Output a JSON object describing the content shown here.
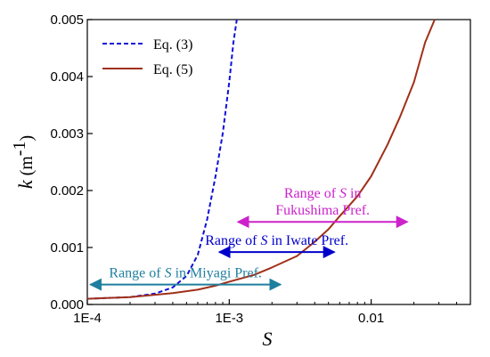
{
  "chart_data": {
    "type": "line",
    "x_scale": "log",
    "xlabel": "S",
    "ylabel_main": "k",
    "ylabel_unit": " (m",
    "ylabel_exp": "-1",
    "ylabel_close": ")",
    "xlim": [
      0.0001,
      0.05
    ],
    "ylim": [
      0,
      0.005
    ],
    "x_ticks": [
      {
        "value": 0.0001,
        "label": "1E-4"
      },
      {
        "value": 0.001,
        "label": "1E-3"
      },
      {
        "value": 0.01,
        "label": "0.01"
      }
    ],
    "y_ticks": [
      {
        "value": 0.0,
        "label": "0.000"
      },
      {
        "value": 0.001,
        "label": "0.001"
      },
      {
        "value": 0.002,
        "label": "0.002"
      },
      {
        "value": 0.003,
        "label": "0.003"
      },
      {
        "value": 0.004,
        "label": "0.004"
      },
      {
        "value": 0.005,
        "label": "0.005"
      }
    ],
    "series": [
      {
        "name": "Eq. (3)",
        "color": "#1010d8",
        "style": "dashed",
        "x": [
          0.0001,
          0.0002,
          0.0003,
          0.0004,
          0.0005,
          0.0006,
          0.0007,
          0.0008,
          0.0009,
          0.001,
          0.00107,
          0.00113
        ],
        "y": [
          0.0001,
          0.00013,
          0.00019,
          0.0003,
          0.0005,
          0.00087,
          0.0015,
          0.00225,
          0.003,
          0.0039,
          0.0046,
          0.005
        ]
      },
      {
        "name": "Eq. (5)",
        "color": "#a0301a",
        "style": "solid",
        "x": [
          0.0001,
          0.0002,
          0.0004,
          0.0006,
          0.0008,
          0.001,
          0.0015,
          0.002,
          0.003,
          0.004,
          0.005,
          0.006,
          0.008,
          0.01,
          0.013,
          0.016,
          0.02,
          0.024,
          0.028
        ],
        "y": [
          0.0001,
          0.00013,
          0.0002,
          0.00026,
          0.00033,
          0.0004,
          0.00052,
          0.00065,
          0.00085,
          0.0011,
          0.00132,
          0.00155,
          0.0019,
          0.00225,
          0.0028,
          0.0033,
          0.0039,
          0.0046,
          0.005
        ]
      }
    ],
    "legend": "top-left",
    "annotations": [
      {
        "pre": "Range of ",
        "var": "S",
        "post": " in Miyagi Pref.",
        "color": "#1f7f9e",
        "x_from": 0.000105,
        "x_to": 0.0023,
        "y": 0.00035,
        "label_lines": 1
      },
      {
        "pre": "Range of ",
        "var": "S",
        "post": " in Iwate Pref.",
        "color": "#0000cc",
        "x_from": 0.00085,
        "x_to": 0.0055,
        "y": 0.00092,
        "label_lines": 1
      },
      {
        "pre": "Range of ",
        "var": "S",
        "post": " in",
        "line2": "Fukushima Pref.",
        "color": "#cc22cc",
        "x_from": 0.00115,
        "x_to": 0.018,
        "y": 0.00145,
        "label_lines": 2
      }
    ]
  }
}
